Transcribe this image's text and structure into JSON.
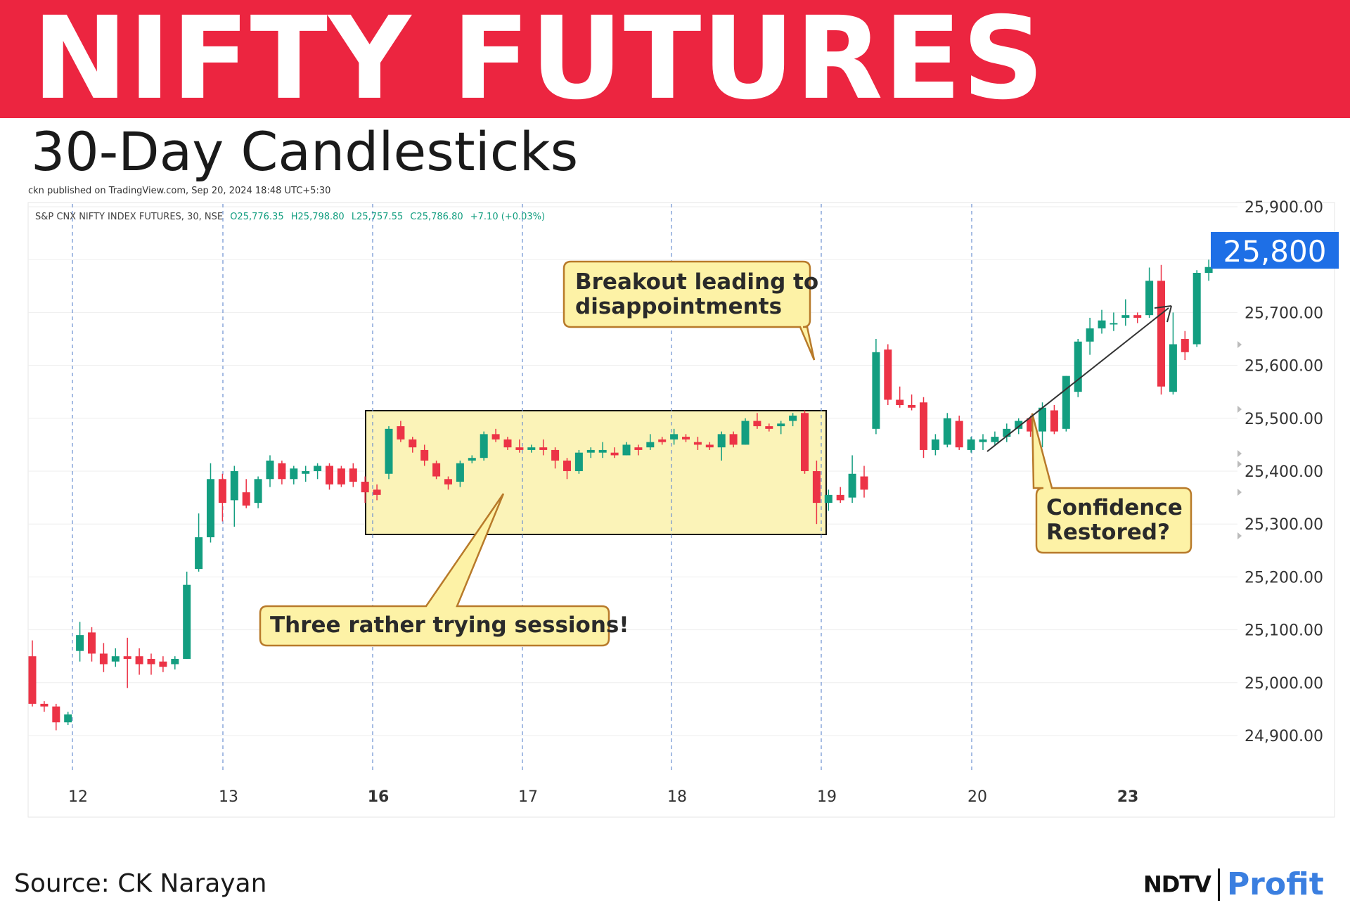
{
  "header": {
    "title": "NIFTY FUTURES",
    "subtitle": "30-Day Candlesticks",
    "banner_color": "#ec2540"
  },
  "chart_header": {
    "published": "ckn published on TradingView.com, Sep 20, 2024 18:48 UTC+5:30",
    "symbol": "S&P CNX NIFTY INDEX FUTURES, 30, NSE",
    "open": "O25,776.35",
    "high": "H25,798.80",
    "low": "L25,757.55",
    "close": "C25,786.80",
    "change": "+7.10 (+0.03%)"
  },
  "price_badge": "25,800",
  "footer": {
    "source": "Source:  CK Narayan",
    "logo_ndtv": "NDTV",
    "logo_profit": "Profit"
  },
  "colors": {
    "up": "#139e80",
    "down": "#ec3346",
    "grid_dash": "#6b8fd0",
    "badge": "#1e6fe6",
    "callout_fill": "#fdf2a6",
    "callout_border": "#b87a2a",
    "box_fill": "#fbf3b8"
  },
  "chart_data": {
    "type": "candlestick",
    "title": "30-Day Candlesticks",
    "timeframe": "30",
    "ylim": [
      24830,
      25900
    ],
    "y_ticks": [
      "25,900.00",
      "25,800.00",
      "25,700.00",
      "25,600.00",
      "25,500.00",
      "25,400.00",
      "25,300.00",
      "25,200.00",
      "25,100.00",
      "25,000.00",
      "24,900.00"
    ],
    "x_ticks": [
      {
        "label": "12",
        "bold": false
      },
      {
        "label": "13",
        "bold": false
      },
      {
        "label": "16",
        "bold": true
      },
      {
        "label": "17",
        "bold": false
      },
      {
        "label": "18",
        "bold": false
      },
      {
        "label": "19",
        "bold": false
      },
      {
        "label": "20",
        "bold": false
      },
      {
        "label": "23",
        "bold": true
      }
    ],
    "candles": [
      {
        "o": 25050,
        "h": 25080,
        "l": 24955,
        "c": 24960
      },
      {
        "o": 24960,
        "h": 24965,
        "l": 24945,
        "c": 24955
      },
      {
        "o": 24955,
        "h": 24960,
        "l": 24910,
        "c": 24925
      },
      {
        "o": 24925,
        "h": 24945,
        "l": 24920,
        "c": 24940
      },
      {
        "o": 25060,
        "h": 25115,
        "l": 25040,
        "c": 25090
      },
      {
        "o": 25095,
        "h": 25105,
        "l": 25040,
        "c": 25055
      },
      {
        "o": 25055,
        "h": 25075,
        "l": 25020,
        "c": 25035
      },
      {
        "o": 25040,
        "h": 25065,
        "l": 25030,
        "c": 25050
      },
      {
        "o": 25050,
        "h": 25085,
        "l": 24990,
        "c": 25045
      },
      {
        "o": 25050,
        "h": 25065,
        "l": 25015,
        "c": 25035
      },
      {
        "o": 25045,
        "h": 25055,
        "l": 25015,
        "c": 25035
      },
      {
        "o": 25040,
        "h": 25050,
        "l": 25020,
        "c": 25030
      },
      {
        "o": 25035,
        "h": 25050,
        "l": 25025,
        "c": 25045
      },
      {
        "o": 25045,
        "h": 25210,
        "l": 25045,
        "c": 25185
      },
      {
        "o": 25215,
        "h": 25320,
        "l": 25210,
        "c": 25275
      },
      {
        "o": 25275,
        "h": 25415,
        "l": 25265,
        "c": 25385
      },
      {
        "o": 25385,
        "h": 25395,
        "l": 25305,
        "c": 25340
      },
      {
        "o": 25345,
        "h": 25410,
        "l": 25295,
        "c": 25400
      },
      {
        "o": 25360,
        "h": 25385,
        "l": 25330,
        "c": 25335
      },
      {
        "o": 25340,
        "h": 25390,
        "l": 25330,
        "c": 25385
      },
      {
        "o": 25385,
        "h": 25430,
        "l": 25370,
        "c": 25420
      },
      {
        "o": 25415,
        "h": 25420,
        "l": 25375,
        "c": 25385
      },
      {
        "o": 25385,
        "h": 25410,
        "l": 25375,
        "c": 25405
      },
      {
        "o": 25395,
        "h": 25410,
        "l": 25380,
        "c": 25400
      },
      {
        "o": 25400,
        "h": 25415,
        "l": 25385,
        "c": 25410
      },
      {
        "o": 25410,
        "h": 25415,
        "l": 25365,
        "c": 25375
      },
      {
        "o": 25405,
        "h": 25410,
        "l": 25370,
        "c": 25375
      },
      {
        "o": 25405,
        "h": 25415,
        "l": 25370,
        "c": 25380
      },
      {
        "o": 25380,
        "h": 25390,
        "l": 25340,
        "c": 25360
      },
      {
        "o": 25365,
        "h": 25375,
        "l": 25345,
        "c": 25355
      },
      {
        "o": 25395,
        "h": 25485,
        "l": 25385,
        "c": 25480
      },
      {
        "o": 25485,
        "h": 25495,
        "l": 25455,
        "c": 25460
      },
      {
        "o": 25460,
        "h": 25465,
        "l": 25435,
        "c": 25445
      },
      {
        "o": 25440,
        "h": 25450,
        "l": 25410,
        "c": 25420
      },
      {
        "o": 25415,
        "h": 25420,
        "l": 25385,
        "c": 25390
      },
      {
        "o": 25385,
        "h": 25390,
        "l": 25365,
        "c": 25375
      },
      {
        "o": 25380,
        "h": 25420,
        "l": 25370,
        "c": 25415
      },
      {
        "o": 25420,
        "h": 25430,
        "l": 25415,
        "c": 25425
      },
      {
        "o": 25425,
        "h": 25475,
        "l": 25420,
        "c": 25470
      },
      {
        "o": 25470,
        "h": 25480,
        "l": 25455,
        "c": 25460
      },
      {
        "o": 25460,
        "h": 25465,
        "l": 25440,
        "c": 25445
      },
      {
        "o": 25445,
        "h": 25460,
        "l": 25435,
        "c": 25440
      },
      {
        "o": 25440,
        "h": 25450,
        "l": 25435,
        "c": 25445
      },
      {
        "o": 25445,
        "h": 25460,
        "l": 25430,
        "c": 25440
      },
      {
        "o": 25440,
        "h": 25445,
        "l": 25405,
        "c": 25420
      },
      {
        "o": 25420,
        "h": 25425,
        "l": 25385,
        "c": 25400
      },
      {
        "o": 25400,
        "h": 25440,
        "l": 25395,
        "c": 25435
      },
      {
        "o": 25435,
        "h": 25445,
        "l": 25425,
        "c": 25440
      },
      {
        "o": 25435,
        "h": 25455,
        "l": 25425,
        "c": 25440
      },
      {
        "o": 25435,
        "h": 25445,
        "l": 25425,
        "c": 25430
      },
      {
        "o": 25430,
        "h": 25455,
        "l": 25430,
        "c": 25450
      },
      {
        "o": 25445,
        "h": 25450,
        "l": 25430,
        "c": 25440
      },
      {
        "o": 25445,
        "h": 25470,
        "l": 25440,
        "c": 25455
      },
      {
        "o": 25460,
        "h": 25465,
        "l": 25450,
        "c": 25455
      },
      {
        "o": 25460,
        "h": 25480,
        "l": 25450,
        "c": 25470
      },
      {
        "o": 25465,
        "h": 25470,
        "l": 25455,
        "c": 25460
      },
      {
        "o": 25455,
        "h": 25465,
        "l": 25440,
        "c": 25450
      },
      {
        "o": 25450,
        "h": 25455,
        "l": 25440,
        "c": 25445
      },
      {
        "o": 25445,
        "h": 25475,
        "l": 25420,
        "c": 25470
      },
      {
        "o": 25470,
        "h": 25475,
        "l": 25445,
        "c": 25450
      },
      {
        "o": 25450,
        "h": 25500,
        "l": 25450,
        "c": 25495
      },
      {
        "o": 25495,
        "h": 25510,
        "l": 25480,
        "c": 25485
      },
      {
        "o": 25485,
        "h": 25490,
        "l": 25475,
        "c": 25480
      },
      {
        "o": 25485,
        "h": 25495,
        "l": 25470,
        "c": 25490
      },
      {
        "o": 25495,
        "h": 25510,
        "l": 25485,
        "c": 25505
      },
      {
        "o": 25510,
        "h": 25515,
        "l": 25395,
        "c": 25400
      },
      {
        "o": 25400,
        "h": 25420,
        "l": 25300,
        "c": 25340
      },
      {
        "o": 25340,
        "h": 25365,
        "l": 25325,
        "c": 25355
      },
      {
        "o": 25355,
        "h": 25370,
        "l": 25340,
        "c": 25345
      },
      {
        "o": 25350,
        "h": 25430,
        "l": 25340,
        "c": 25395
      },
      {
        "o": 25390,
        "h": 25410,
        "l": 25350,
        "c": 25365
      },
      {
        "o": 25480,
        "h": 25650,
        "l": 25470,
        "c": 25625
      },
      {
        "o": 25630,
        "h": 25640,
        "l": 25525,
        "c": 25535
      },
      {
        "o": 25535,
        "h": 25560,
        "l": 25520,
        "c": 25525
      },
      {
        "o": 25525,
        "h": 25545,
        "l": 25515,
        "c": 25520
      },
      {
        "o": 25530,
        "h": 25540,
        "l": 25425,
        "c": 25440
      },
      {
        "o": 25440,
        "h": 25470,
        "l": 25430,
        "c": 25460
      },
      {
        "o": 25450,
        "h": 25510,
        "l": 25445,
        "c": 25500
      },
      {
        "o": 25495,
        "h": 25505,
        "l": 25440,
        "c": 25445
      },
      {
        "o": 25440,
        "h": 25465,
        "l": 25435,
        "c": 25460
      },
      {
        "o": 25455,
        "h": 25470,
        "l": 25440,
        "c": 25460
      },
      {
        "o": 25455,
        "h": 25475,
        "l": 25450,
        "c": 25465
      },
      {
        "o": 25465,
        "h": 25490,
        "l": 25455,
        "c": 25480
      },
      {
        "o": 25480,
        "h": 25500,
        "l": 25470,
        "c": 25495
      },
      {
        "o": 25500,
        "h": 25505,
        "l": 25465,
        "c": 25475
      },
      {
        "o": 25475,
        "h": 25530,
        "l": 25445,
        "c": 25520
      },
      {
        "o": 25515,
        "h": 25525,
        "l": 25470,
        "c": 25475
      },
      {
        "o": 25480,
        "h": 25580,
        "l": 25475,
        "c": 25580
      },
      {
        "o": 25550,
        "h": 25650,
        "l": 25540,
        "c": 25645
      },
      {
        "o": 25645,
        "h": 25690,
        "l": 25620,
        "c": 25670
      },
      {
        "o": 25670,
        "h": 25705,
        "l": 25660,
        "c": 25685
      },
      {
        "o": 25680,
        "h": 25700,
        "l": 25665,
        "c": 25680
      },
      {
        "o": 25690,
        "h": 25725,
        "l": 25675,
        "c": 25695
      },
      {
        "o": 25695,
        "h": 25700,
        "l": 25680,
        "c": 25690
      },
      {
        "o": 25695,
        "h": 25785,
        "l": 25690,
        "c": 25760
      },
      {
        "o": 25760,
        "h": 25790,
        "l": 25545,
        "c": 25560
      },
      {
        "o": 25550,
        "h": 25700,
        "l": 25545,
        "c": 25640
      },
      {
        "o": 25650,
        "h": 25665,
        "l": 25610,
        "c": 25625
      },
      {
        "o": 25640,
        "h": 25780,
        "l": 25635,
        "c": 25775
      },
      {
        "o": 25775,
        "h": 25800,
        "l": 25760,
        "c": 25786
      }
    ],
    "annotations": [
      {
        "id": "breakout",
        "lines": [
          "Breakout leading to",
          "disappointments"
        ]
      },
      {
        "id": "trying",
        "lines": [
          "Three rather trying sessions!"
        ]
      },
      {
        "id": "confidence",
        "lines": [
          "Confidence",
          "Restored?"
        ]
      }
    ]
  }
}
